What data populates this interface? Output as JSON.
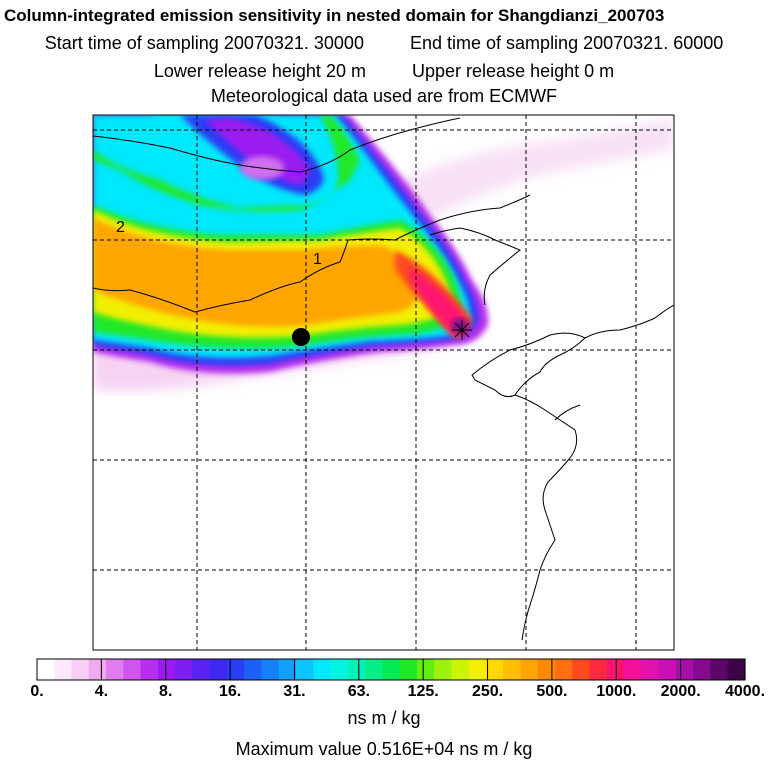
{
  "header": {
    "title": "Column-integrated emission sensitivity in nested domain for Shangdianzi_200703",
    "start_label": "Start time of sampling",
    "start_value": "20070321. 30000",
    "end_label": "End time of sampling",
    "end_value": "20070321. 60000",
    "lower_label": "Lower release height",
    "lower_value": "20 m",
    "upper_label": "Upper release height",
    "upper_value": "0 m",
    "met_line": "Meteorological data used are from ECMWF"
  },
  "map_labels": {
    "label_1": "1",
    "label_2": "2"
  },
  "chart_data": {
    "type": "heatmap",
    "title": "Column-integrated emission sensitivity in nested domain for Shangdianzi_200703",
    "units": "ns m / kg",
    "colorbar_ticks": [
      "0.",
      "4.",
      "8.",
      "16.",
      "31.",
      "63.",
      "125.",
      "250.",
      "500.",
      "1000.",
      "2000.",
      "4000."
    ],
    "colorbar_tick_values": [
      0,
      4,
      8,
      16,
      31,
      63,
      125,
      250,
      500,
      1000,
      2000,
      4000
    ],
    "colorbar_colors": [
      "#ffffff",
      "#fde8fc",
      "#f8cdf6",
      "#f0aaef",
      "#e07ded",
      "#cf55ec",
      "#b72eed",
      "#9a1bef",
      "#7d1ef2",
      "#5c22f2",
      "#3f28f0",
      "#2a3ef5",
      "#1e5ff8",
      "#1580fa",
      "#10a2fb",
      "#0cc5fc",
      "#00e8fb",
      "#00f5e0",
      "#00f3b6",
      "#00ef86",
      "#00ea55",
      "#20e826",
      "#62ee10",
      "#9cf208",
      "#c9f501",
      "#f3ef00",
      "#ffd800",
      "#ffbf00",
      "#ffa500",
      "#ff8a00",
      "#ff6e10",
      "#ff4a20",
      "#ff2a40",
      "#ff1270",
      "#f8109a",
      "#e212ad",
      "#c810b4",
      "#a80ea8",
      "#840a8f",
      "#5c0668",
      "#3c0446"
    ],
    "maximum_value": "0.516E+04",
    "maximum_label": "Maximum value",
    "receptor": "Shangdianzi",
    "grid": true
  }
}
